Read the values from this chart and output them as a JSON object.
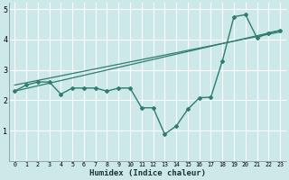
{
  "xlabel": "Humidex (Indice chaleur)",
  "ylabel": "",
  "xlim": [
    -0.5,
    23.5
  ],
  "ylim": [
    0,
    5.2
  ],
  "yticks": [
    1,
    2,
    3,
    4,
    5
  ],
  "xticks": [
    0,
    1,
    2,
    3,
    4,
    5,
    6,
    7,
    8,
    9,
    10,
    11,
    12,
    13,
    14,
    15,
    16,
    17,
    18,
    19,
    20,
    21,
    22,
    23
  ],
  "background_color": "#cce8e8",
  "grid_color": "#ffffff",
  "line_color": "#2e7d6e",
  "line1_x": [
    0,
    1,
    2,
    3,
    4,
    5,
    6,
    7,
    8,
    9,
    10,
    11,
    12,
    13,
    14,
    15,
    16,
    17,
    18,
    19,
    20,
    21,
    22,
    23
  ],
  "line1_y": [
    2.3,
    2.5,
    2.6,
    2.6,
    2.2,
    2.4,
    2.4,
    2.4,
    2.3,
    2.4,
    2.4,
    1.75,
    1.75,
    0.88,
    1.15,
    1.7,
    2.08,
    2.1,
    3.3,
    4.75,
    4.82,
    4.05,
    4.22,
    4.3
  ],
  "line2_x": [
    0,
    23
  ],
  "line2_y": [
    2.3,
    4.3
  ],
  "line3_x": [
    0,
    23
  ],
  "line3_y": [
    2.5,
    4.25
  ]
}
